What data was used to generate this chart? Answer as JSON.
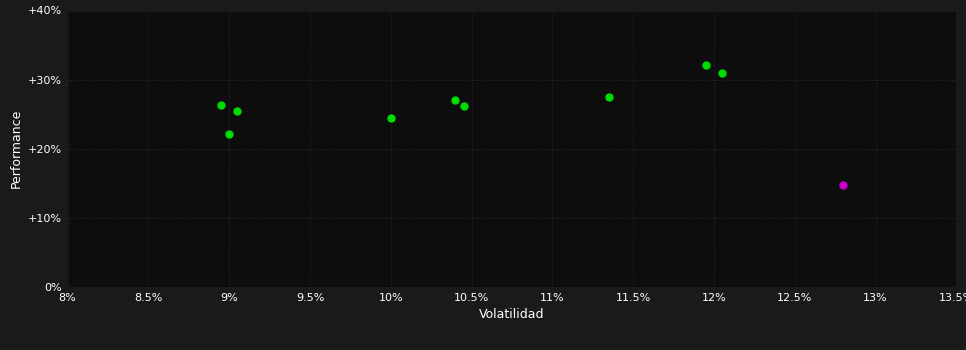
{
  "background_color": "#1a1a1a",
  "plot_bg_color": "#0d0d0d",
  "grid_color": "#2a2a2a",
  "green_color": "#00dd00",
  "magenta_color": "#cc00cc",
  "xlabel": "Volatilidad",
  "ylabel": "Performance",
  "xlim": [
    0.08,
    0.135
  ],
  "ylim": [
    0.0,
    0.4
  ],
  "xticks": [
    0.08,
    0.085,
    0.09,
    0.095,
    0.1,
    0.105,
    0.11,
    0.115,
    0.12,
    0.125,
    0.13,
    0.135
  ],
  "yticks": [
    0.0,
    0.1,
    0.2,
    0.3,
    0.4
  ],
  "green_points": [
    [
      0.0895,
      0.263
    ],
    [
      0.0905,
      0.254
    ],
    [
      0.09,
      0.221
    ],
    [
      0.1,
      0.244
    ],
    [
      0.104,
      0.27
    ],
    [
      0.1045,
      0.262
    ],
    [
      0.1135,
      0.275
    ],
    [
      0.1195,
      0.321
    ],
    [
      0.1205,
      0.309
    ]
  ],
  "magenta_points": [
    [
      0.128,
      0.148
    ]
  ],
  "marker_size": 5,
  "tick_fontsize": 8,
  "label_fontsize": 9,
  "grid_linestyle": ":",
  "grid_linewidth": 0.7
}
